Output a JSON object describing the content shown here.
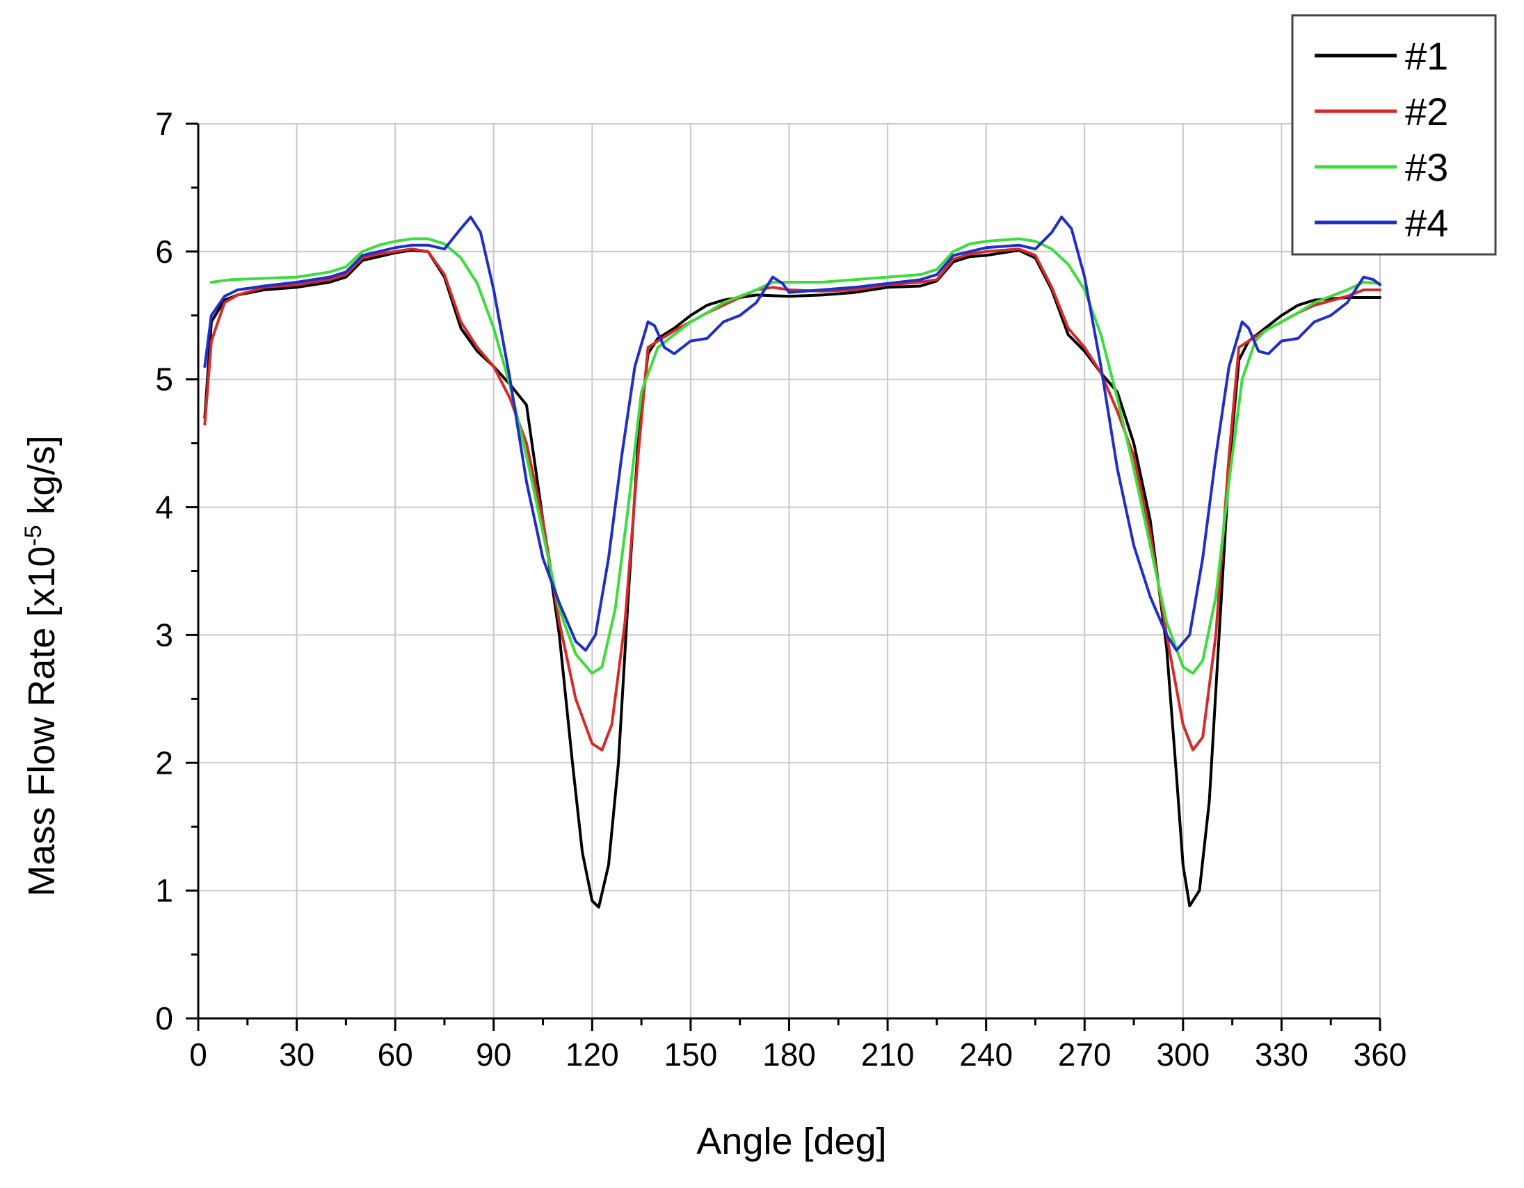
{
  "chart_data": {
    "type": "line",
    "xlabel": "Angle [deg]",
    "ylabel_prefix": "Mass Flow Rate [x10",
    "ylabel_exp": "-5",
    "ylabel_suffix": " kg/s]",
    "xlim": [
      0,
      360
    ],
    "ylim": [
      0,
      7
    ],
    "x_ticks": [
      0,
      30,
      60,
      90,
      120,
      150,
      180,
      210,
      240,
      270,
      300,
      330,
      360
    ],
    "y_ticks": [
      0,
      1,
      2,
      3,
      4,
      5,
      6,
      7
    ],
    "x_tick_labels": [
      "0",
      "30",
      "60",
      "90",
      "120",
      "150",
      "180",
      "210",
      "240",
      "270",
      "300",
      "330",
      "360"
    ],
    "y_tick_labels": [
      "0",
      "1",
      "2",
      "3",
      "4",
      "5",
      "6",
      "7"
    ],
    "grid": true,
    "legend_position": "top-right",
    "series": [
      {
        "name": "#1",
        "color": "#000000",
        "points": [
          [
            2,
            4.7
          ],
          [
            4,
            5.45
          ],
          [
            8,
            5.62
          ],
          [
            12,
            5.66
          ],
          [
            20,
            5.7
          ],
          [
            30,
            5.72
          ],
          [
            40,
            5.76
          ],
          [
            45,
            5.8
          ],
          [
            50,
            5.93
          ],
          [
            55,
            5.96
          ],
          [
            60,
            5.99
          ],
          [
            65,
            6.01
          ],
          [
            70,
            6.0
          ],
          [
            75,
            5.8
          ],
          [
            80,
            5.4
          ],
          [
            85,
            5.22
          ],
          [
            90,
            5.1
          ],
          [
            95,
            4.96
          ],
          [
            100,
            4.8
          ],
          [
            105,
            3.9
          ],
          [
            110,
            3.0
          ],
          [
            114,
            2.0
          ],
          [
            117,
            1.3
          ],
          [
            120,
            0.92
          ],
          [
            122,
            0.87
          ],
          [
            125,
            1.2
          ],
          [
            128,
            2.0
          ],
          [
            131,
            3.3
          ],
          [
            134,
            4.5
          ],
          [
            137,
            5.2
          ],
          [
            140,
            5.32
          ],
          [
            145,
            5.4
          ],
          [
            150,
            5.5
          ],
          [
            155,
            5.58
          ],
          [
            160,
            5.62
          ],
          [
            170,
            5.66
          ],
          [
            180,
            5.65
          ],
          [
            190,
            5.66
          ],
          [
            200,
            5.68
          ],
          [
            210,
            5.72
          ],
          [
            220,
            5.73
          ],
          [
            225,
            5.77
          ],
          [
            230,
            5.92
          ],
          [
            235,
            5.96
          ],
          [
            240,
            5.97
          ],
          [
            250,
            6.01
          ],
          [
            255,
            5.95
          ],
          [
            260,
            5.7
          ],
          [
            265,
            5.35
          ],
          [
            270,
            5.22
          ],
          [
            275,
            5.05
          ],
          [
            280,
            4.9
          ],
          [
            285,
            4.5
          ],
          [
            290,
            3.9
          ],
          [
            295,
            2.9
          ],
          [
            298,
            1.9
          ],
          [
            300,
            1.2
          ],
          [
            302,
            0.88
          ],
          [
            305,
            1.0
          ],
          [
            308,
            1.7
          ],
          [
            311,
            3.0
          ],
          [
            314,
            4.3
          ],
          [
            317,
            5.15
          ],
          [
            320,
            5.3
          ],
          [
            325,
            5.4
          ],
          [
            330,
            5.5
          ],
          [
            335,
            5.58
          ],
          [
            340,
            5.62
          ],
          [
            350,
            5.64
          ],
          [
            360,
            5.64
          ]
        ]
      },
      {
        "name": "#2",
        "color": "#d62a2a",
        "points": [
          [
            2,
            4.65
          ],
          [
            4,
            5.3
          ],
          [
            8,
            5.6
          ],
          [
            12,
            5.66
          ],
          [
            20,
            5.72
          ],
          [
            30,
            5.74
          ],
          [
            40,
            5.78
          ],
          [
            45,
            5.82
          ],
          [
            50,
            5.95
          ],
          [
            55,
            5.98
          ],
          [
            60,
            6.0
          ],
          [
            65,
            6.02
          ],
          [
            70,
            6.0
          ],
          [
            75,
            5.82
          ],
          [
            80,
            5.45
          ],
          [
            85,
            5.25
          ],
          [
            90,
            5.1
          ],
          [
            95,
            4.85
          ],
          [
            100,
            4.5
          ],
          [
            105,
            3.9
          ],
          [
            110,
            3.1
          ],
          [
            115,
            2.5
          ],
          [
            120,
            2.15
          ],
          [
            123,
            2.1
          ],
          [
            126,
            2.3
          ],
          [
            130,
            3.1
          ],
          [
            134,
            4.4
          ],
          [
            137,
            5.25
          ],
          [
            140,
            5.3
          ],
          [
            145,
            5.38
          ],
          [
            150,
            5.45
          ],
          [
            155,
            5.52
          ],
          [
            160,
            5.58
          ],
          [
            170,
            5.7
          ],
          [
            175,
            5.72
          ],
          [
            180,
            5.7
          ],
          [
            190,
            5.69
          ],
          [
            200,
            5.7
          ],
          [
            210,
            5.74
          ],
          [
            220,
            5.76
          ],
          [
            225,
            5.78
          ],
          [
            230,
            5.94
          ],
          [
            235,
            5.98
          ],
          [
            240,
            6.0
          ],
          [
            250,
            6.02
          ],
          [
            255,
            5.97
          ],
          [
            260,
            5.72
          ],
          [
            265,
            5.4
          ],
          [
            270,
            5.25
          ],
          [
            275,
            5.05
          ],
          [
            280,
            4.75
          ],
          [
            285,
            4.4
          ],
          [
            290,
            3.8
          ],
          [
            295,
            3.0
          ],
          [
            300,
            2.3
          ],
          [
            303,
            2.1
          ],
          [
            306,
            2.2
          ],
          [
            310,
            3.0
          ],
          [
            314,
            4.4
          ],
          [
            317,
            5.25
          ],
          [
            320,
            5.3
          ],
          [
            325,
            5.38
          ],
          [
            330,
            5.45
          ],
          [
            335,
            5.52
          ],
          [
            340,
            5.58
          ],
          [
            350,
            5.65
          ],
          [
            355,
            5.7
          ],
          [
            360,
            5.7
          ]
        ]
      },
      {
        "name": "#3",
        "color": "#3ddc3d",
        "points": [
          [
            4,
            5.76
          ],
          [
            10,
            5.78
          ],
          [
            20,
            5.79
          ],
          [
            30,
            5.8
          ],
          [
            40,
            5.84
          ],
          [
            45,
            5.88
          ],
          [
            50,
            6.0
          ],
          [
            55,
            6.05
          ],
          [
            60,
            6.08
          ],
          [
            65,
            6.1
          ],
          [
            70,
            6.1
          ],
          [
            75,
            6.06
          ],
          [
            80,
            5.95
          ],
          [
            85,
            5.75
          ],
          [
            90,
            5.4
          ],
          [
            95,
            4.95
          ],
          [
            100,
            4.4
          ],
          [
            105,
            3.8
          ],
          [
            110,
            3.2
          ],
          [
            115,
            2.85
          ],
          [
            120,
            2.7
          ],
          [
            123,
            2.75
          ],
          [
            127,
            3.2
          ],
          [
            131,
            4.0
          ],
          [
            135,
            4.9
          ],
          [
            140,
            5.25
          ],
          [
            145,
            5.35
          ],
          [
            150,
            5.45
          ],
          [
            155,
            5.52
          ],
          [
            160,
            5.6
          ],
          [
            170,
            5.7
          ],
          [
            175,
            5.76
          ],
          [
            180,
            5.76
          ],
          [
            190,
            5.76
          ],
          [
            200,
            5.78
          ],
          [
            210,
            5.8
          ],
          [
            220,
            5.82
          ],
          [
            225,
            5.86
          ],
          [
            230,
            6.0
          ],
          [
            235,
            6.06
          ],
          [
            240,
            6.08
          ],
          [
            250,
            6.1
          ],
          [
            255,
            6.08
          ],
          [
            260,
            6.02
          ],
          [
            265,
            5.9
          ],
          [
            270,
            5.7
          ],
          [
            275,
            5.35
          ],
          [
            280,
            4.85
          ],
          [
            285,
            4.3
          ],
          [
            290,
            3.7
          ],
          [
            295,
            3.1
          ],
          [
            300,
            2.75
          ],
          [
            303,
            2.7
          ],
          [
            306,
            2.8
          ],
          [
            310,
            3.3
          ],
          [
            314,
            4.2
          ],
          [
            318,
            5.0
          ],
          [
            322,
            5.3
          ],
          [
            325,
            5.38
          ],
          [
            330,
            5.45
          ],
          [
            335,
            5.52
          ],
          [
            340,
            5.6
          ],
          [
            350,
            5.7
          ],
          [
            355,
            5.76
          ],
          [
            360,
            5.75
          ]
        ]
      },
      {
        "name": "#4",
        "color": "#1f2ec8",
        "points": [
          [
            2,
            5.1
          ],
          [
            4,
            5.5
          ],
          [
            8,
            5.65
          ],
          [
            12,
            5.7
          ],
          [
            20,
            5.73
          ],
          [
            30,
            5.76
          ],
          [
            40,
            5.8
          ],
          [
            45,
            5.84
          ],
          [
            50,
            5.97
          ],
          [
            55,
            6.0
          ],
          [
            60,
            6.03
          ],
          [
            65,
            6.05
          ],
          [
            70,
            6.05
          ],
          [
            75,
            6.02
          ],
          [
            80,
            6.18
          ],
          [
            83,
            6.27
          ],
          [
            86,
            6.15
          ],
          [
            90,
            5.7
          ],
          [
            95,
            5.0
          ],
          [
            100,
            4.2
          ],
          [
            105,
            3.6
          ],
          [
            110,
            3.25
          ],
          [
            115,
            2.95
          ],
          [
            118,
            2.88
          ],
          [
            121,
            3.0
          ],
          [
            125,
            3.6
          ],
          [
            129,
            4.4
          ],
          [
            133,
            5.1
          ],
          [
            137,
            5.45
          ],
          [
            139,
            5.42
          ],
          [
            142,
            5.25
          ],
          [
            145,
            5.2
          ],
          [
            150,
            5.3
          ],
          [
            155,
            5.32
          ],
          [
            160,
            5.45
          ],
          [
            165,
            5.5
          ],
          [
            170,
            5.6
          ],
          [
            175,
            5.8
          ],
          [
            178,
            5.75
          ],
          [
            180,
            5.68
          ],
          [
            190,
            5.7
          ],
          [
            200,
            5.72
          ],
          [
            210,
            5.75
          ],
          [
            220,
            5.78
          ],
          [
            225,
            5.82
          ],
          [
            230,
            5.97
          ],
          [
            235,
            6.0
          ],
          [
            240,
            6.03
          ],
          [
            250,
            6.05
          ],
          [
            255,
            6.02
          ],
          [
            260,
            6.15
          ],
          [
            263,
            6.27
          ],
          [
            266,
            6.18
          ],
          [
            270,
            5.8
          ],
          [
            275,
            5.1
          ],
          [
            280,
            4.3
          ],
          [
            285,
            3.7
          ],
          [
            290,
            3.3
          ],
          [
            295,
            3.0
          ],
          [
            298,
            2.88
          ],
          [
            302,
            3.0
          ],
          [
            306,
            3.6
          ],
          [
            310,
            4.4
          ],
          [
            314,
            5.1
          ],
          [
            318,
            5.45
          ],
          [
            320,
            5.4
          ],
          [
            323,
            5.22
          ],
          [
            326,
            5.2
          ],
          [
            330,
            5.3
          ],
          [
            335,
            5.32
          ],
          [
            340,
            5.45
          ],
          [
            345,
            5.5
          ],
          [
            350,
            5.6
          ],
          [
            355,
            5.8
          ],
          [
            358,
            5.78
          ],
          [
            360,
            5.74
          ]
        ]
      }
    ]
  }
}
